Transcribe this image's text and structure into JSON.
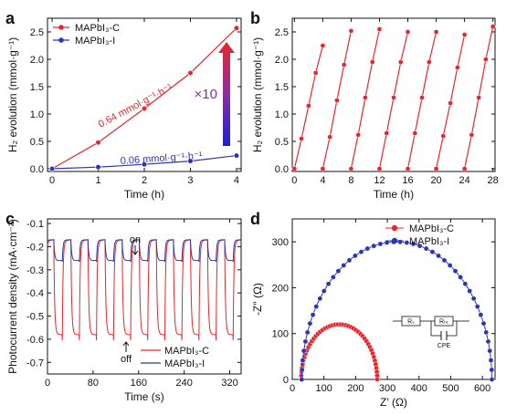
{
  "colors": {
    "red": "#e8262b",
    "blue": "#2a34b6",
    "purple": "#8b2ea0",
    "axis": "#111111"
  },
  "chart_data": [
    {
      "id": "a",
      "type": "line",
      "panel_label": "a",
      "xlabel": "Time (h)",
      "ylabel": "H₂ evolution (mmol·g⁻¹)",
      "xlim": [
        -0.1,
        4.1
      ],
      "ylim": [
        -0.05,
        2.75
      ],
      "xticks": [
        0,
        1,
        2,
        3,
        4
      ],
      "yticks": [
        0.0,
        0.5,
        1.0,
        1.5,
        2.0,
        2.5
      ],
      "series": [
        {
          "name": "MAPbI₃-C",
          "color": "#e8262b",
          "x": [
            0,
            1,
            2,
            3,
            4
          ],
          "y": [
            0.0,
            0.48,
            1.1,
            1.75,
            2.57
          ]
        },
        {
          "name": "MAPbI₃-I",
          "color": "#2a34b6",
          "x": [
            0,
            1,
            2,
            3,
            4
          ],
          "y": [
            0.0,
            0.03,
            0.08,
            0.14,
            0.24
          ]
        }
      ],
      "annotations": [
        {
          "text": "0.64 mmol·g⁻¹·h⁻¹",
          "color": "#e8262b"
        },
        {
          "text": "0.06 mmol·g⁻¹·h⁻¹",
          "color": "#2a34b6"
        },
        {
          "text": "×10",
          "color": "#8b2ea0"
        }
      ],
      "legend": "top-left"
    },
    {
      "id": "b",
      "type": "line",
      "panel_label": "b",
      "xlabel": "Time (h)",
      "ylabel": "H₂ evolution (mmol·g⁻¹)",
      "xlim": [
        -0.3,
        28.3
      ],
      "ylim": [
        -0.05,
        2.75
      ],
      "xticks": [
        0,
        4,
        8,
        12,
        16,
        20,
        24,
        28
      ],
      "yticks": [
        0.0,
        0.5,
        1.0,
        1.5,
        2.0,
        2.5
      ],
      "cycles": [
        {
          "x": [
            0,
            1,
            2,
            3,
            4
          ],
          "y": [
            0.0,
            0.55,
            1.15,
            1.75,
            2.25
          ]
        },
        {
          "x": [
            4,
            5,
            6,
            7,
            8
          ],
          "y": [
            0.0,
            0.58,
            1.25,
            1.9,
            2.52
          ]
        },
        {
          "x": [
            8,
            9,
            10,
            11,
            12
          ],
          "y": [
            0.0,
            0.62,
            1.3,
            1.95,
            2.55
          ]
        },
        {
          "x": [
            12,
            13,
            14,
            15,
            16
          ],
          "y": [
            0.0,
            0.65,
            1.3,
            1.95,
            2.5
          ]
        },
        {
          "x": [
            16,
            17,
            18,
            19,
            20
          ],
          "y": [
            0.0,
            0.65,
            1.3,
            1.95,
            2.5
          ]
        },
        {
          "x": [
            20,
            21,
            22,
            23,
            24
          ],
          "y": [
            0.0,
            0.6,
            1.2,
            1.85,
            2.45
          ]
        },
        {
          "x": [
            24,
            25,
            26,
            27,
            28
          ],
          "y": [
            0.0,
            0.62,
            1.3,
            2.0,
            2.6
          ]
        }
      ],
      "color": "#e8262b"
    },
    {
      "id": "c",
      "type": "line",
      "panel_label": "c",
      "xlabel": "Time (s)",
      "ylabel": "Photocurrent density (mA·cm⁻²)",
      "xlim": [
        0,
        340
      ],
      "ylim": [
        -0.75,
        -0.08
      ],
      "xticks": [
        0,
        80,
        160,
        240,
        320
      ],
      "yticks": [
        -0.1,
        -0.2,
        -0.3,
        -0.4,
        -0.5,
        -0.6,
        -0.7
      ],
      "period_s": 30,
      "series": [
        {
          "name": "MAPbI₃-C",
          "color": "#e8262b",
          "on_level": -0.17,
          "off_level": -0.58
        },
        {
          "name": "MAPbI₃-I",
          "color": "#2a34b6",
          "on_level": -0.17,
          "off_level": -0.26
        }
      ],
      "annotations": [
        "on",
        "off"
      ],
      "legend": "bottom-right"
    },
    {
      "id": "d",
      "type": "scatter",
      "panel_label": "d",
      "xlabel": "Z′ (Ω)",
      "ylabel": "-Z″ (Ω)",
      "xlim": [
        0,
        640
      ],
      "ylim": [
        0,
        350
      ],
      "xticks": [
        0,
        100,
        200,
        300,
        400,
        500,
        600
      ],
      "yticks": [
        0,
        100,
        200,
        300
      ],
      "series": [
        {
          "name": "MAPbI₃-C",
          "color": "#e8262b",
          "center": 148,
          "radius": 120
        },
        {
          "name": "MAPbI₃-I",
          "color": "#2a34b6",
          "center": 330,
          "radius": 300
        }
      ],
      "circuit": {
        "elements": [
          "Rₛ",
          "Rₕₜ",
          "CPE"
        ]
      },
      "legend": "top-right"
    }
  ]
}
